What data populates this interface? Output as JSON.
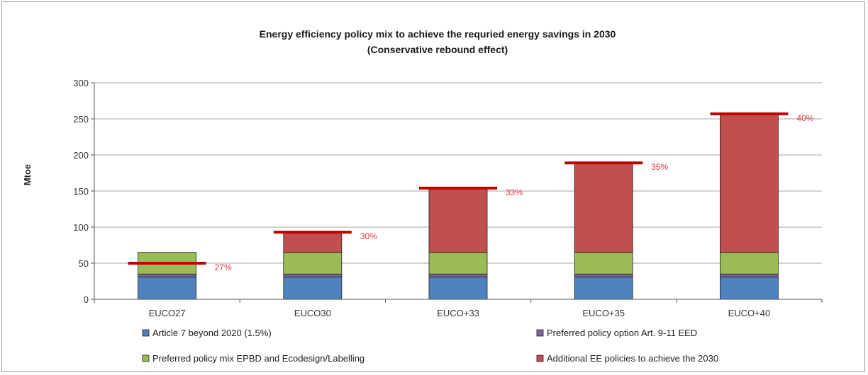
{
  "chart_data": {
    "type": "bar",
    "stacked": true,
    "title_line1": "Energy efficiency policy mix to achieve the requried energy savings in 2030",
    "title_line2": "(Conservative rebound effect)",
    "ylabel": "Mtoe",
    "ylim": [
      0,
      300
    ],
    "yticks": [
      "0",
      "50",
      "100",
      "150",
      "200",
      "250",
      "300"
    ],
    "grid": true,
    "legend_position": "bottom",
    "categories": [
      "EUCO27",
      "EUCO30",
      "EUCO+33",
      "EUCO+35",
      "EUCO+40"
    ],
    "series": [
      {
        "name": "Article 7 beyond 2020 (1.5%)",
        "color": "#4f81bd",
        "values": [
          31,
          31,
          31,
          31,
          31
        ]
      },
      {
        "name": "Preferred policy option Art. 9-11 EED",
        "color": "#8064a2",
        "values": [
          4,
          4,
          4,
          4,
          4
        ]
      },
      {
        "name": "Preferred policy mix EPBD and Ecodesign/Labelling",
        "color": "#9bbb59",
        "values": [
          30,
          30,
          30,
          30,
          30
        ]
      },
      {
        "name": "Additional EE policies to achieve the 2030",
        "color": "#c0504d",
        "values": [
          0,
          28,
          88,
          123,
          192
        ]
      }
    ],
    "targets": {
      "color": "#c00000",
      "values": [
        50,
        93,
        154,
        189,
        257
      ],
      "labels": [
        "27%",
        "30%",
        "33%",
        "35%",
        "40%"
      ]
    }
  }
}
